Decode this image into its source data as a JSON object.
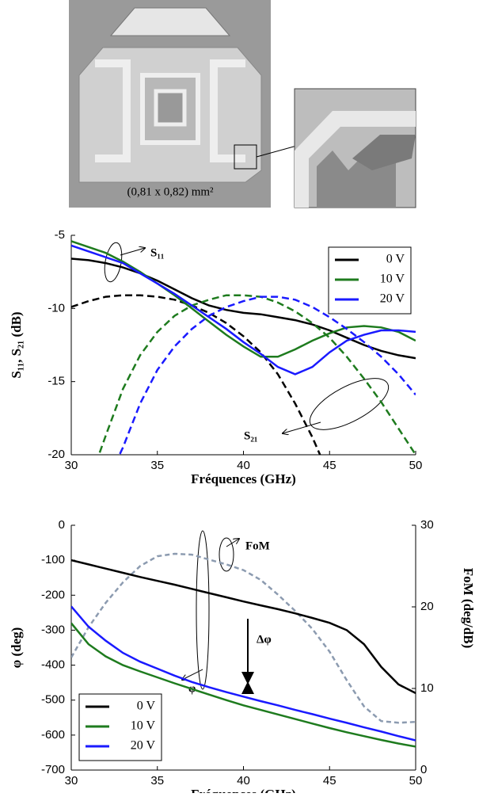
{
  "figure": {
    "photo_caption": "(0,81 x 0,82) mm²"
  },
  "chart_data": [
    {
      "type": "line",
      "x_label": "Fréquences (GHz)",
      "y_label": "S₁₁, S₂₁ (dB)",
      "annotations": [
        {
          "text": "S₁₁"
        },
        {
          "text": "S₂₁"
        }
      ],
      "x": [
        30,
        31,
        32,
        33,
        34,
        35,
        36,
        37,
        38,
        39,
        40,
        41,
        42,
        43,
        44,
        45,
        46,
        47,
        48,
        49,
        50
      ],
      "xlim": [
        30,
        50
      ],
      "xticks": [
        30,
        35,
        40,
        45,
        50
      ],
      "ylim": [
        -20,
        -5
      ],
      "yticks": [
        -5,
        -10,
        -15,
        -20
      ],
      "legend": "upper right",
      "series": [
        {
          "name": "0 V",
          "color": "#000000",
          "s11": [
            -6.6,
            -6.7,
            -6.9,
            -7.2,
            -7.6,
            -8.1,
            -8.7,
            -9.3,
            -9.8,
            -10.1,
            -10.3,
            -10.4,
            -10.6,
            -10.8,
            -11.1,
            -11.5,
            -12.0,
            -12.5,
            -12.9,
            -13.2,
            -13.4
          ],
          "s21": [
            -9.9,
            -9.5,
            -9.2,
            -9.1,
            -9.1,
            -9.2,
            -9.4,
            -9.8,
            -10.3,
            -11.0,
            -11.9,
            -13.0,
            -14.5,
            -16.5,
            -18.8,
            -21.5,
            null,
            null,
            null,
            null,
            null
          ]
        },
        {
          "name": "10 V",
          "color": "#1e7b1e",
          "s11": [
            -5.4,
            -5.8,
            -6.2,
            -6.8,
            -7.5,
            -8.3,
            -9.1,
            -10.0,
            -10.9,
            -11.8,
            -12.6,
            -13.3,
            -13.3,
            -12.8,
            -12.2,
            -11.7,
            -11.3,
            -11.2,
            -11.3,
            -11.6,
            -12.2
          ],
          "s21": [
            null,
            -22,
            -18.7,
            -15.5,
            -13.2,
            -11.6,
            -10.5,
            -9.8,
            -9.4,
            -9.1,
            -9.1,
            -9.2,
            -9.6,
            -10.2,
            -11.0,
            -12.0,
            -13.3,
            -14.8,
            -16.4,
            -18.2,
            -20.0
          ]
        },
        {
          "name": "20 V",
          "color": "#1a1aff",
          "s11": [
            -5.7,
            -6.1,
            -6.5,
            -6.9,
            -7.6,
            -8.3,
            -9.0,
            -9.8,
            -10.6,
            -11.4,
            -12.3,
            -13.1,
            -14.0,
            -14.5,
            -14.0,
            -13.0,
            -12.2,
            -11.8,
            -11.5,
            -11.5,
            -11.6
          ],
          "s21": [
            null,
            null,
            -22,
            -19.5,
            -16.5,
            -14.2,
            -12.6,
            -11.4,
            -10.5,
            -9.9,
            -9.5,
            -9.2,
            -9.2,
            -9.4,
            -9.9,
            -10.6,
            -11.4,
            -12.3,
            -13.3,
            -14.5,
            -15.9
          ]
        }
      ]
    },
    {
      "type": "line",
      "x_label": "Fréquences (GHz)",
      "y_label": "φ (deg)",
      "y2_label": "FoM (deg/dB)",
      "annotations": [
        {
          "text": "FoM"
        },
        {
          "text": "Δφ"
        },
        {
          "text": "φ"
        }
      ],
      "x": [
        30,
        31,
        32,
        33,
        34,
        35,
        36,
        37,
        38,
        39,
        40,
        41,
        42,
        43,
        44,
        45,
        46,
        47,
        48,
        49,
        50
      ],
      "xlim": [
        30,
        50
      ],
      "xticks": [
        30,
        35,
        40,
        45,
        50
      ],
      "ylim": [
        -700,
        0
      ],
      "yticks": [
        0,
        -100,
        -200,
        -300,
        -400,
        -500,
        -600,
        -700
      ],
      "y2lim": [
        0,
        30
      ],
      "y2ticks": [
        0,
        10,
        20,
        30
      ],
      "legend": "lower left",
      "series": [
        {
          "name": "0 V",
          "color": "#000000",
          "values": [
            -100,
            -112,
            -124,
            -136,
            -148,
            -159,
            -170,
            -182,
            -194,
            -206,
            -218,
            -229,
            -240,
            -252,
            -265,
            -279,
            -300,
            -340,
            -405,
            -455,
            -480
          ]
        },
        {
          "name": "10 V",
          "color": "#1e7b1e",
          "values": [
            -280,
            -340,
            -375,
            -400,
            -418,
            -435,
            -452,
            -468,
            -484,
            -500,
            -515,
            -528,
            -541,
            -554,
            -567,
            -580,
            -592,
            -603,
            -614,
            -624,
            -633
          ]
        },
        {
          "name": "20 V",
          "color": "#1a1aff",
          "values": [
            -232,
            -290,
            -330,
            -365,
            -390,
            -410,
            -430,
            -448,
            -463,
            -477,
            -490,
            -503,
            -515,
            -528,
            -540,
            -553,
            -565,
            -578,
            -590,
            -603,
            -615
          ]
        }
      ],
      "fom": {
        "color": "#8c9bb0",
        "axis": "y2",
        "values": [
          13.8,
          17.5,
          20.5,
          23,
          25,
          26.2,
          26.5,
          26.4,
          25.8,
          25.2,
          24.5,
          23.3,
          21.5,
          19.5,
          17.3,
          14.5,
          11,
          7.8,
          6.0,
          5.8,
          5.9
        ]
      }
    }
  ]
}
